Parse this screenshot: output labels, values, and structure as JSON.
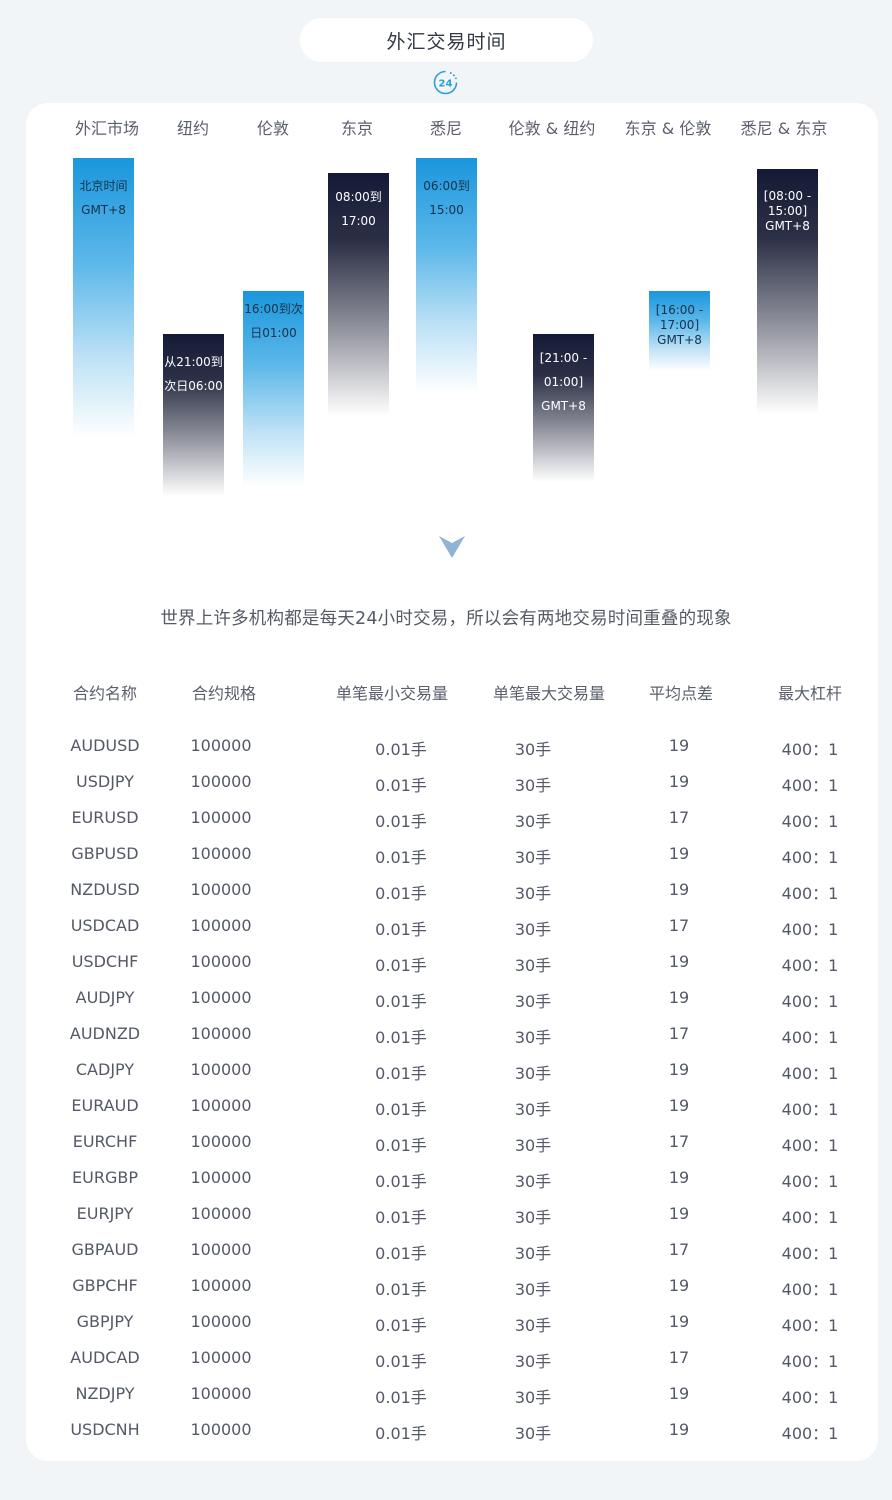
{
  "title": "外汇交易时间",
  "clock_badge": "24",
  "market_headers": [
    "外汇市场",
    "纽约",
    "伦敦",
    "东京",
    "悉尼",
    "伦敦 & 纽约",
    "东京 & 伦敦",
    "悉尼 & 东京"
  ],
  "bars": [
    {
      "lines": [
        "北京时间",
        "GMT+8"
      ]
    },
    {
      "lines": [
        "从21:00到",
        "次日06:00"
      ]
    },
    {
      "lines": [
        "16:00到次",
        "日01:00"
      ]
    },
    {
      "lines": [
        "08:00到",
        "17:00"
      ]
    },
    {
      "lines": [
        "06:00到",
        "15:00"
      ]
    },
    {
      "lines": [
        "[21:00 -",
        "01:00]",
        "GMT+8"
      ]
    },
    {
      "lines": [
        "[16:00 -",
        "17:00]",
        "GMT+8"
      ]
    },
    {
      "lines": [
        "[08:00 -",
        "15:00]",
        "GMT+8"
      ]
    }
  ],
  "caption": "世界上许多机构都是每天24小时交易，所以会有两地交易时间重叠的现象",
  "colors": {
    "accent_blue": "#1a96dc",
    "dark_navy": "#141a36",
    "arrow": "#8fb4d4"
  },
  "table": {
    "headers": [
      "合约名称",
      "合约规格",
      "单笔最小交易量",
      "单笔最大交易量",
      "平均点差",
      "最大杠杆"
    ],
    "rows": [
      [
        "AUDUSD",
        "100000",
        "0.01手",
        "30手",
        "19",
        "400：1"
      ],
      [
        "USDJPY",
        "100000",
        "0.01手",
        "30手",
        "19",
        "400：1"
      ],
      [
        "EURUSD",
        "100000",
        "0.01手",
        "30手",
        "17",
        "400：1"
      ],
      [
        "GBPUSD",
        "100000",
        "0.01手",
        "30手",
        "19",
        "400：1"
      ],
      [
        "NZDUSD",
        "100000",
        "0.01手",
        "30手",
        "19",
        "400：1"
      ],
      [
        "USDCAD",
        "100000",
        "0.01手",
        "30手",
        "17",
        "400：1"
      ],
      [
        "USDCHF",
        "100000",
        "0.01手",
        "30手",
        "19",
        "400：1"
      ],
      [
        "AUDJPY",
        "100000",
        "0.01手",
        "30手",
        "19",
        "400：1"
      ],
      [
        "AUDNZD",
        "100000",
        "0.01手",
        "30手",
        "17",
        "400：1"
      ],
      [
        "CADJPY",
        "100000",
        "0.01手",
        "30手",
        "19",
        "400：1"
      ],
      [
        "EURAUD",
        "100000",
        "0.01手",
        "30手",
        "19",
        "400：1"
      ],
      [
        "EURCHF",
        "100000",
        "0.01手",
        "30手",
        "17",
        "400：1"
      ],
      [
        "EURGBP",
        "100000",
        "0.01手",
        "30手",
        "19",
        "400：1"
      ],
      [
        "EURJPY",
        "100000",
        "0.01手",
        "30手",
        "19",
        "400：1"
      ],
      [
        "GBPAUD",
        "100000",
        "0.01手",
        "30手",
        "17",
        "400：1"
      ],
      [
        "GBPCHF",
        "100000",
        "0.01手",
        "30手",
        "19",
        "400：1"
      ],
      [
        "GBPJPY",
        "100000",
        "0.01手",
        "30手",
        "19",
        "400：1"
      ],
      [
        "AUDCAD",
        "100000",
        "0.01手",
        "30手",
        "17",
        "400：1"
      ],
      [
        "NZDJPY",
        "100000",
        "0.01手",
        "30手",
        "19",
        "400：1"
      ],
      [
        "USDCNH",
        "100000",
        "0.01手",
        "30手",
        "19",
        "400：1"
      ]
    ]
  }
}
